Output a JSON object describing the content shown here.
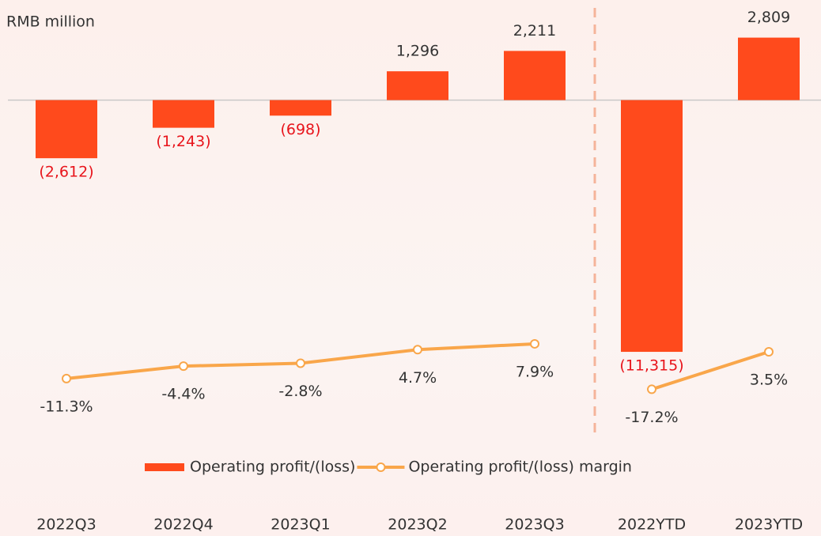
{
  "chart_data": {
    "type": "bar",
    "unit_label": "RMB million",
    "categories": [
      "2022Q3",
      "2022Q4",
      "2023Q1",
      "2023Q2",
      "2023Q3",
      "2022YTD",
      "2023YTD"
    ],
    "series": [
      {
        "name": "Operating profit/(loss)",
        "type": "bar",
        "color": "#ff4a1c",
        "values": [
          -2612,
          -1243,
          -698,
          1296,
          2211,
          -11315,
          2809
        ],
        "value_labels": [
          "(2,612)",
          "(1,243)",
          "(698)",
          "1,296",
          "2,211",
          "(11,315)",
          "2,809"
        ]
      },
      {
        "name": "Operating profit/(loss) margin",
        "type": "line",
        "axis": "y2",
        "color": "#f9a64a",
        "values": [
          -11.3,
          -4.4,
          -2.8,
          4.7,
          7.9,
          -17.2,
          3.5
        ],
        "value_labels": [
          "-11.3%",
          "-4.4%",
          "-2.8%",
          "4.7%",
          "7.9%",
          "-17.2%",
          "3.5%"
        ]
      }
    ],
    "ylim": [
      -15400,
      4500
    ],
    "y2lim": [
      -46.7,
      197.8
    ],
    "divider_after": 4,
    "legend": "bottom"
  }
}
